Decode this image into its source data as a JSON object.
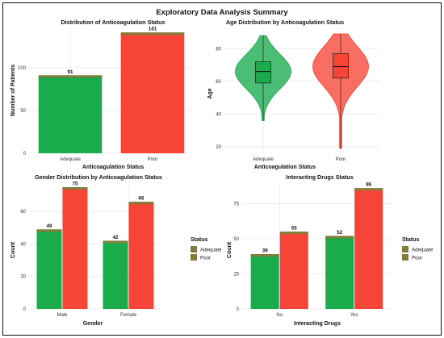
{
  "title": "Exploratory Data Analysis Summary",
  "colors": {
    "adequate": "#1aab4d",
    "poor": "#f64536",
    "panel_border": "#111111",
    "grid": "#e6e6e6",
    "legend_key": "#827d3a"
  },
  "legend": {
    "title": "Status",
    "items": [
      "Adequate",
      "Poor"
    ]
  },
  "chart_data": [
    {
      "type": "bar",
      "title": "Distribution of Anticoagulation Status",
      "xlabel": "Anticoagulation Status",
      "ylabel": "Number of Patients",
      "categories": [
        "Adequate",
        "Poor"
      ],
      "values": [
        91,
        141
      ],
      "ylim": [
        0,
        145
      ],
      "yticks": [
        0,
        50,
        100
      ],
      "grid": true
    },
    {
      "type": "violin",
      "title": "Age Distribution by Anticoagulation Status",
      "xlabel": "Anticoagulation Status",
      "ylabel": "Age",
      "categories": [
        "Adequate",
        "Poor"
      ],
      "ylim": [
        16,
        92
      ],
      "yticks": [
        20,
        40,
        60,
        80
      ],
      "grid": true,
      "series": [
        {
          "name": "Adequate",
          "min": 36,
          "q1": 59,
          "median": 66,
          "q3": 72,
          "max": 88
        },
        {
          "name": "Poor",
          "min": 19,
          "q1": 62,
          "median": 69,
          "q3": 77,
          "max": 89
        }
      ]
    },
    {
      "type": "bar",
      "title": "Gender Distribution by Anticoagulation Status",
      "xlabel": "Gender",
      "ylabel": "Count",
      "categories": [
        "Male",
        "Female"
      ],
      "series": [
        {
          "name": "Adequate",
          "values": [
            49,
            42
          ]
        },
        {
          "name": "Poor",
          "values": [
            75,
            66
          ]
        }
      ],
      "ylim": [
        0,
        77
      ],
      "yticks": [
        0,
        20,
        40,
        60
      ],
      "legend": "right",
      "grid": true
    },
    {
      "type": "bar",
      "title": "Interacting Drugs Status",
      "xlabel": "Interacting Drugs",
      "ylabel": "Count",
      "categories": [
        "No",
        "Yes"
      ],
      "series": [
        {
          "name": "Adequate",
          "values": [
            39,
            52
          ]
        },
        {
          "name": "Poor",
          "values": [
            55,
            86
          ]
        }
      ],
      "ylim": [
        0,
        89
      ],
      "yticks": [
        0,
        25,
        50,
        75
      ],
      "legend": "right",
      "grid": true
    }
  ]
}
